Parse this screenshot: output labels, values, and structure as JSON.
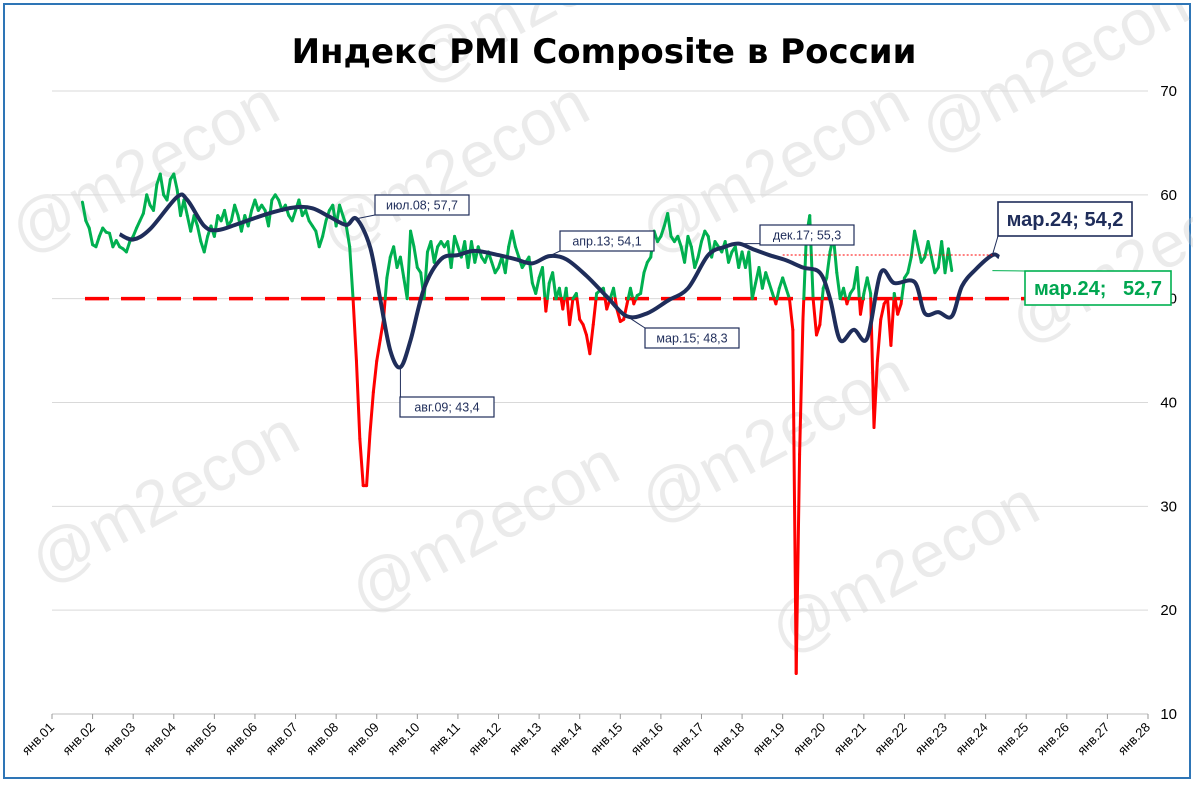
{
  "title": "Индекс PMI Composite в России",
  "watermark": "@m2econ",
  "chart_data": {
    "type": "line",
    "title": "Индекс PMI Composite в России",
    "ylim": [
      10,
      70
    ],
    "y_ticks": [
      10,
      20,
      30,
      40,
      50,
      60,
      70
    ],
    "y_axis_position": "right",
    "grid": "horizontal",
    "x_ticks": [
      "янв.01",
      "янв.02",
      "янв.03",
      "янв.04",
      "янв.05",
      "янв.06",
      "янв.07",
      "янв.08",
      "янв.09",
      "янв.10",
      "янв.11",
      "янв.12",
      "янв.13",
      "янв.14",
      "янв.15",
      "янв.16",
      "янв.17",
      "янв.18",
      "янв.19",
      "янв.20",
      "янв.21",
      "янв.22",
      "янв.23",
      "янв.24",
      "янв.25",
      "янв.26",
      "янв.27",
      "янв.28"
    ],
    "threshold": 50,
    "colors": {
      "above": "#00b050",
      "below": "#ff0000",
      "smoothed": "#1f2d5a",
      "threshold": "#ff0000"
    },
    "series": [
      {
        "kind": "monthly",
        "x_start": "2001-10",
        "values": [
          59.3,
          57.5,
          56.8,
          55.2,
          55.0,
          56.0,
          56.8,
          56.4,
          56.3,
          55.0,
          55.6,
          55.0,
          54.8,
          54.5,
          55.5,
          56.0,
          56.8,
          57.5,
          58.2,
          60.0,
          59.0,
          58.5,
          61.0,
          62.0,
          60.0,
          59.5,
          61.5,
          62.0,
          60.5,
          58.0,
          59.5,
          58.0,
          56.5,
          58.0,
          57.0,
          55.5,
          54.5,
          56.0,
          57.0,
          56.0,
          58.0,
          57.5,
          58.5,
          57.0,
          57.5,
          59.0,
          58.0,
          56.5,
          58.0,
          57.0,
          58.5,
          59.5,
          58.5,
          59.0,
          58.5,
          57.0,
          59.5,
          60.0,
          59.5,
          58.5,
          59.0,
          58.0,
          57.5,
          58.5,
          59.5,
          58.0,
          58.5,
          57.5,
          57.0,
          56.5,
          55.0,
          56.0,
          57.5,
          58.5,
          59.0,
          57.0,
          59.0,
          58.0,
          57.0,
          55.0,
          50.0,
          44.0,
          36.5,
          32.0,
          32.0,
          37.0,
          41.0,
          44.0,
          46.0,
          48.0,
          52.0,
          54.0,
          55.0,
          53.0,
          54.0,
          52.0,
          50.0,
          56.5,
          55.0,
          53.0,
          52.5,
          50.0,
          54.5,
          55.5,
          53.5,
          55.0,
          55.5,
          55.0,
          55.5,
          53.0,
          56.0,
          55.0,
          54.0,
          55.5,
          53.0,
          55.5,
          53.5,
          55.0,
          54.0,
          53.5,
          54.5,
          53.5,
          52.5,
          53.0,
          54.0,
          52.5,
          55.0,
          56.5,
          55.0,
          54.0,
          53.0,
          53.5,
          54.0,
          51.5,
          50.5,
          52.0,
          53.0,
          48.8,
          51.5,
          52.5,
          50.0,
          51.0,
          49.0,
          51.0,
          47.5,
          50.0,
          50.5,
          48.0,
          47.5,
          46.5,
          44.7,
          47.5,
          50.5,
          50.8,
          51.0,
          49.0,
          50.0,
          51.0,
          49.0,
          47.8,
          48.0,
          49.5,
          51.0,
          49.5,
          50.3,
          50.5,
          52.5,
          53.5,
          54.0,
          56.5,
          55.5,
          56.0,
          57.0,
          58.2,
          56.0,
          55.5,
          56.0,
          55.0,
          53.5,
          56.0,
          55.0,
          53.0,
          54.0,
          55.5,
          56.5,
          56.0,
          54.0,
          55.5,
          55.0,
          54.5,
          55.5,
          53.5,
          54.5,
          55.0,
          53.0,
          54.5,
          53.0,
          54.5,
          50.0,
          51.5,
          53.0,
          51.0,
          52.5,
          51.5,
          50.5,
          49.5,
          51.0,
          52.0,
          51.0,
          50.0,
          47.0,
          13.9,
          35.0,
          48.0,
          56.0,
          58.0,
          50.0,
          46.5,
          47.5,
          51.0,
          52.0,
          54.5,
          56.0,
          52.5,
          50.0,
          51.0,
          49.5,
          50.5,
          51.0,
          53.0,
          48.5,
          50.5,
          52.0,
          50.5,
          37.6,
          44.0,
          48.0,
          49.5,
          50.0,
          45.5,
          50.5,
          48.5,
          49.5,
          52.0,
          52.5,
          54.0,
          56.5,
          55.0,
          53.5,
          54.0,
          55.5,
          54.0,
          52.5,
          53.0,
          55.5,
          52.5,
          54.8,
          52.7
        ]
      },
      {
        "kind": "smoothed",
        "points": [
          [
            "2002-09",
            56.2
          ],
          [
            "2003-01",
            55.7
          ],
          [
            "2003-06",
            56.7
          ],
          [
            "2004-02",
            59.8
          ],
          [
            "2004-05",
            59.5
          ],
          [
            "2004-10",
            57.0
          ],
          [
            "2005-02",
            56.6
          ],
          [
            "2005-08",
            57.2
          ],
          [
            "2006-05",
            58.2
          ],
          [
            "2007-01",
            58.8
          ],
          [
            "2007-06",
            58.7
          ],
          [
            "2007-11",
            57.9
          ],
          [
            "2008-04",
            57.1
          ],
          [
            "2008-07",
            57.7
          ],
          [
            "2008-11",
            55.0
          ],
          [
            "2009-02",
            50.0
          ],
          [
            "2009-05",
            45.0
          ],
          [
            "2009-08",
            43.4
          ],
          [
            "2009-11",
            46.0
          ],
          [
            "2010-03",
            51.0
          ],
          [
            "2010-08",
            53.8
          ],
          [
            "2011-01",
            54.2
          ],
          [
            "2011-06",
            54.6
          ],
          [
            "2012-01",
            54.2
          ],
          [
            "2012-06",
            53.8
          ],
          [
            "2012-11",
            53.4
          ],
          [
            "2013-04",
            54.1
          ],
          [
            "2013-09",
            53.8
          ],
          [
            "2014-03",
            52.2
          ],
          [
            "2014-09",
            50.2
          ],
          [
            "2015-03",
            48.3
          ],
          [
            "2015-09",
            48.6
          ],
          [
            "2016-03",
            49.8
          ],
          [
            "2016-09",
            51.0
          ],
          [
            "2017-03",
            54.2
          ],
          [
            "2017-08",
            55.0
          ],
          [
            "2017-12",
            55.3
          ],
          [
            "2018-04",
            54.8
          ],
          [
            "2018-09",
            54.2
          ],
          [
            "2019-02",
            53.7
          ],
          [
            "2019-07",
            53.0
          ],
          [
            "2019-12",
            52.5
          ],
          [
            "2020-03",
            50.0
          ],
          [
            "2020-06",
            46.0
          ],
          [
            "2020-10",
            47.0
          ],
          [
            "2021-02",
            46.2
          ],
          [
            "2021-06",
            52.5
          ],
          [
            "2021-10",
            51.5
          ],
          [
            "2022-04",
            51.6
          ],
          [
            "2022-07",
            48.6
          ],
          [
            "2022-11",
            48.7
          ],
          [
            "2023-03",
            48.3
          ],
          [
            "2023-06",
            51.2
          ],
          [
            "2023-10",
            52.8
          ],
          [
            "2024-03",
            54.2
          ],
          [
            "2024-05",
            54.0
          ]
        ]
      }
    ],
    "annotations": [
      {
        "label": "июл.08; 57,7",
        "x": "2008-07",
        "y": 57.7
      },
      {
        "label": "авг.09; 43,4",
        "x": "2009-08",
        "y": 43.4
      },
      {
        "label": "апр.13; 54,1",
        "x": "2013-04",
        "y": 54.1
      },
      {
        "label": "мар.15; 48,3",
        "x": "2015-03",
        "y": 48.3
      },
      {
        "label": "дек.17; 55,3",
        "x": "2017-12",
        "y": 55.3
      },
      {
        "label": "мар.24; 54,2",
        "x": "2024-03",
        "y": 54.2
      },
      {
        "label": "мар.24;   52,7",
        "x": "2024-03",
        "y": 52.7
      }
    ]
  }
}
